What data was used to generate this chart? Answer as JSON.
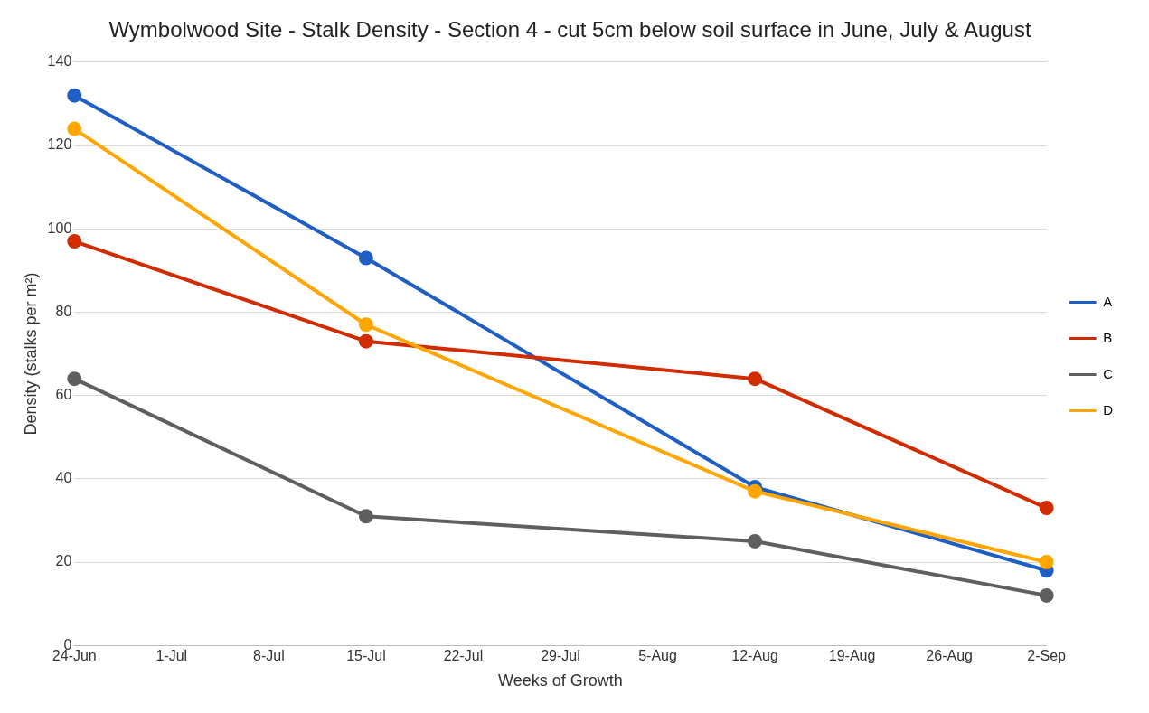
{
  "chart_data": {
    "type": "line",
    "title": "Wymbolwood Site - Stalk Density - Section 4 - cut 5cm below soil surface in June, July & August",
    "xlabel": "Weeks of Growth",
    "ylabel": "Density (stalks per m²)",
    "x": [
      "--06-24",
      "--07-15",
      "--08-12",
      "--09-02"
    ],
    "series": [
      {
        "name": "A",
        "color": "#1f5fc4",
        "values": [
          132,
          93,
          38,
          18
        ]
      },
      {
        "name": "B",
        "color": "#d12b00",
        "values": [
          97,
          73,
          64,
          33
        ]
      },
      {
        "name": "C",
        "color": "#5f5f5f",
        "values": [
          64,
          31,
          25,
          12
        ]
      },
      {
        "name": "D",
        "color": "#ffa600",
        "values": [
          124,
          77,
          37,
          20
        ]
      }
    ],
    "xlim": [
      "--06-24",
      "--09-02"
    ],
    "xticks": [
      {
        "value": "--06-24",
        "label": "24-Jun"
      },
      {
        "value": "--07-01",
        "label": "1-Jul"
      },
      {
        "value": "--07-08",
        "label": "8-Jul"
      },
      {
        "value": "--07-15",
        "label": "15-Jul"
      },
      {
        "value": "--07-22",
        "label": "22-Jul"
      },
      {
        "value": "--07-29",
        "label": "29-Jul"
      },
      {
        "value": "--08-05",
        "label": "5-Aug"
      },
      {
        "value": "--08-12",
        "label": "12-Aug"
      },
      {
        "value": "--08-19",
        "label": "19-Aug"
      },
      {
        "value": "--08-26",
        "label": "26-Aug"
      },
      {
        "value": "--09-02",
        "label": "2-Sep"
      }
    ],
    "ylim": [
      0,
      140
    ],
    "yticks": [
      0,
      20,
      40,
      60,
      80,
      100,
      120,
      140
    ],
    "grid": "y",
    "legend": "right",
    "marker": "circle",
    "line_style": "solid"
  }
}
